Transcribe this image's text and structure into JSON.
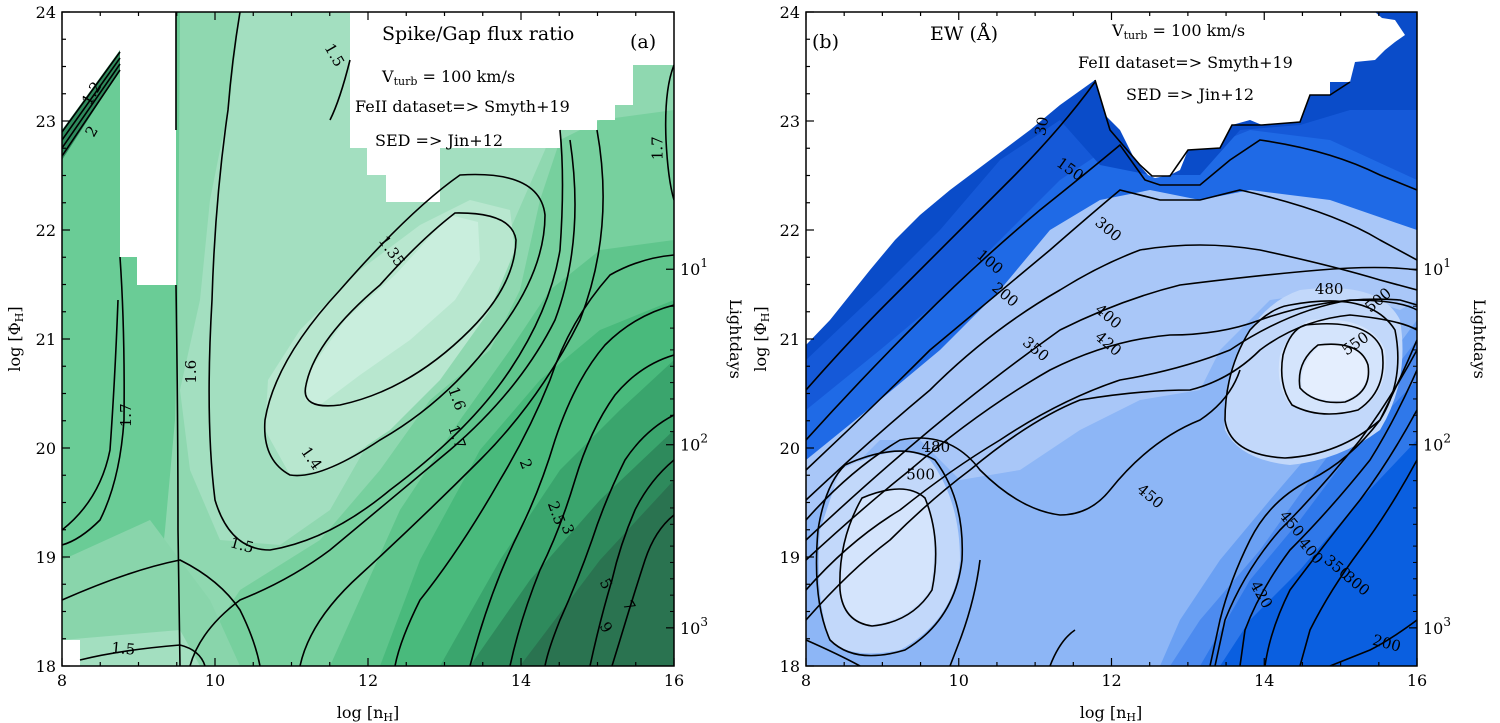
{
  "chart_data": [
    {
      "type": "contour",
      "panel_label": "(a)",
      "title": "Spike/Gap flux ratio",
      "annotations": [
        "V_turb = 100 km/s",
        "FeII dataset=> Smyth+19",
        "SED => Jin+12"
      ],
      "xlabel": "log [n_H]",
      "ylabel": "log [Φ_H]",
      "secondary_ylabel": "Lightdays",
      "xlim": [
        8,
        16
      ],
      "ylim": [
        18,
        24
      ],
      "xticks": [
        "8",
        "10",
        "12",
        "14",
        "16"
      ],
      "yticks": [
        "18",
        "19",
        "20",
        "21",
        "22",
        "23",
        "24"
      ],
      "secondary_yticks": [
        {
          "label": "10",
          "exp": "1",
          "logPhi": 21.64
        },
        {
          "label": "10",
          "exp": "2",
          "logPhi": 20.03
        },
        {
          "label": "10",
          "exp": "3",
          "logPhi": 18.35
        }
      ],
      "colormap": "greens",
      "contour_levels": [
        "1.2",
        "1.35",
        "1.4",
        "1.5",
        "1.6",
        "1.7",
        "2",
        "2.5",
        "3",
        "5",
        "7",
        "9"
      ],
      "contour_labels": [
        {
          "text": "1.2",
          "x": 8.4,
          "y": 23.25,
          "rot": -60
        },
        {
          "text": "2",
          "x": 8.4,
          "y": 22.9,
          "rot": -60
        },
        {
          "text": "1.5",
          "x": 11.55,
          "y": 23.6,
          "rot": 60
        },
        {
          "text": "1.35",
          "x": 12.3,
          "y": 21.8,
          "rot": 55
        },
        {
          "text": "1.6",
          "x": 9.7,
          "y": 20.7,
          "rot": -90
        },
        {
          "text": "1.7",
          "x": 8.85,
          "y": 20.3,
          "rot": -90
        },
        {
          "text": "1.4",
          "x": 11.25,
          "y": 19.9,
          "rot": 55
        },
        {
          "text": "1.6",
          "x": 13.15,
          "y": 20.45,
          "rot": 70
        },
        {
          "text": "1.7",
          "x": 13.15,
          "y": 20.1,
          "rot": 70
        },
        {
          "text": "2",
          "x": 14.05,
          "y": 19.85,
          "rot": 70
        },
        {
          "text": "2.5",
          "x": 14.45,
          "y": 19.4,
          "rot": 70
        },
        {
          "text": "3",
          "x": 14.6,
          "y": 19.25,
          "rot": 70
        },
        {
          "text": "5",
          "x": 15.1,
          "y": 18.75,
          "rot": 60
        },
        {
          "text": "7",
          "x": 15.4,
          "y": 18.55,
          "rot": 60
        },
        {
          "text": "9",
          "x": 15.1,
          "y": 18.35,
          "rot": 60
        },
        {
          "text": "1.5",
          "x": 10.35,
          "y": 19.1,
          "rot": 15
        },
        {
          "text": "1.5",
          "x": 8.8,
          "y": 18.15,
          "rot": 5
        },
        {
          "text": "1.7",
          "x": 15.8,
          "y": 22.75,
          "rot": -90
        }
      ]
    },
    {
      "type": "contour",
      "panel_label": "(b)",
      "title": "EW (Å)",
      "annotations": [
        "V_turb = 100 km/s",
        "FeII dataset=> Smyth+19",
        "SED => Jin+12"
      ],
      "xlabel": "log [n_H]",
      "ylabel": "log [Φ_H]",
      "secondary_ylabel": "Lightdays",
      "xlim": [
        8,
        16
      ],
      "ylim": [
        18,
        24
      ],
      "xticks": [
        "8",
        "10",
        "12",
        "14",
        "16"
      ],
      "yticks": [
        "18",
        "19",
        "20",
        "21",
        "22",
        "23",
        "24"
      ],
      "secondary_yticks": [
        {
          "label": "10",
          "exp": "1",
          "logPhi": 21.64
        },
        {
          "label": "10",
          "exp": "2",
          "logPhi": 20.03
        },
        {
          "label": "10",
          "exp": "3",
          "logPhi": 18.35
        }
      ],
      "colormap": "blues",
      "contour_levels": [
        "30",
        "100",
        "150",
        "200",
        "300",
        "350",
        "400",
        "420",
        "450",
        "480",
        "500",
        "550"
      ],
      "contour_labels": [
        {
          "text": "30",
          "x": 11.1,
          "y": 22.95,
          "rot": -80
        },
        {
          "text": "150",
          "x": 11.45,
          "y": 22.55,
          "rot": 35
        },
        {
          "text": "100",
          "x": 10.4,
          "y": 21.7,
          "rot": 40
        },
        {
          "text": "300",
          "x": 11.95,
          "y": 22.0,
          "rot": 40
        },
        {
          "text": "200",
          "x": 10.6,
          "y": 21.4,
          "rot": 40
        },
        {
          "text": "400",
          "x": 11.95,
          "y": 21.2,
          "rot": 40
        },
        {
          "text": "420",
          "x": 11.95,
          "y": 20.95,
          "rot": 40
        },
        {
          "text": "350",
          "x": 11.0,
          "y": 20.9,
          "rot": 40
        },
        {
          "text": "480",
          "x": 14.85,
          "y": 21.45,
          "rot": 0
        },
        {
          "text": "500",
          "x": 15.5,
          "y": 21.35,
          "rot": -40
        },
        {
          "text": "550",
          "x": 15.2,
          "y": 20.95,
          "rot": -35
        },
        {
          "text": "480",
          "x": 9.7,
          "y": 20.0,
          "rot": 0
        },
        {
          "text": "500",
          "x": 9.5,
          "y": 19.75,
          "rot": 0
        },
        {
          "text": "450",
          "x": 12.5,
          "y": 19.55,
          "rot": 40
        },
        {
          "text": "450",
          "x": 14.35,
          "y": 19.3,
          "rot": 50
        },
        {
          "text": "400",
          "x": 14.6,
          "y": 19.05,
          "rot": 50
        },
        {
          "text": "350",
          "x": 14.95,
          "y": 18.9,
          "rot": 40
        },
        {
          "text": "420",
          "x": 13.95,
          "y": 18.65,
          "rot": 60
        },
        {
          "text": "300",
          "x": 15.2,
          "y": 18.75,
          "rot": 40
        },
        {
          "text": "200",
          "x": 15.6,
          "y": 18.2,
          "rot": 15
        }
      ]
    }
  ]
}
